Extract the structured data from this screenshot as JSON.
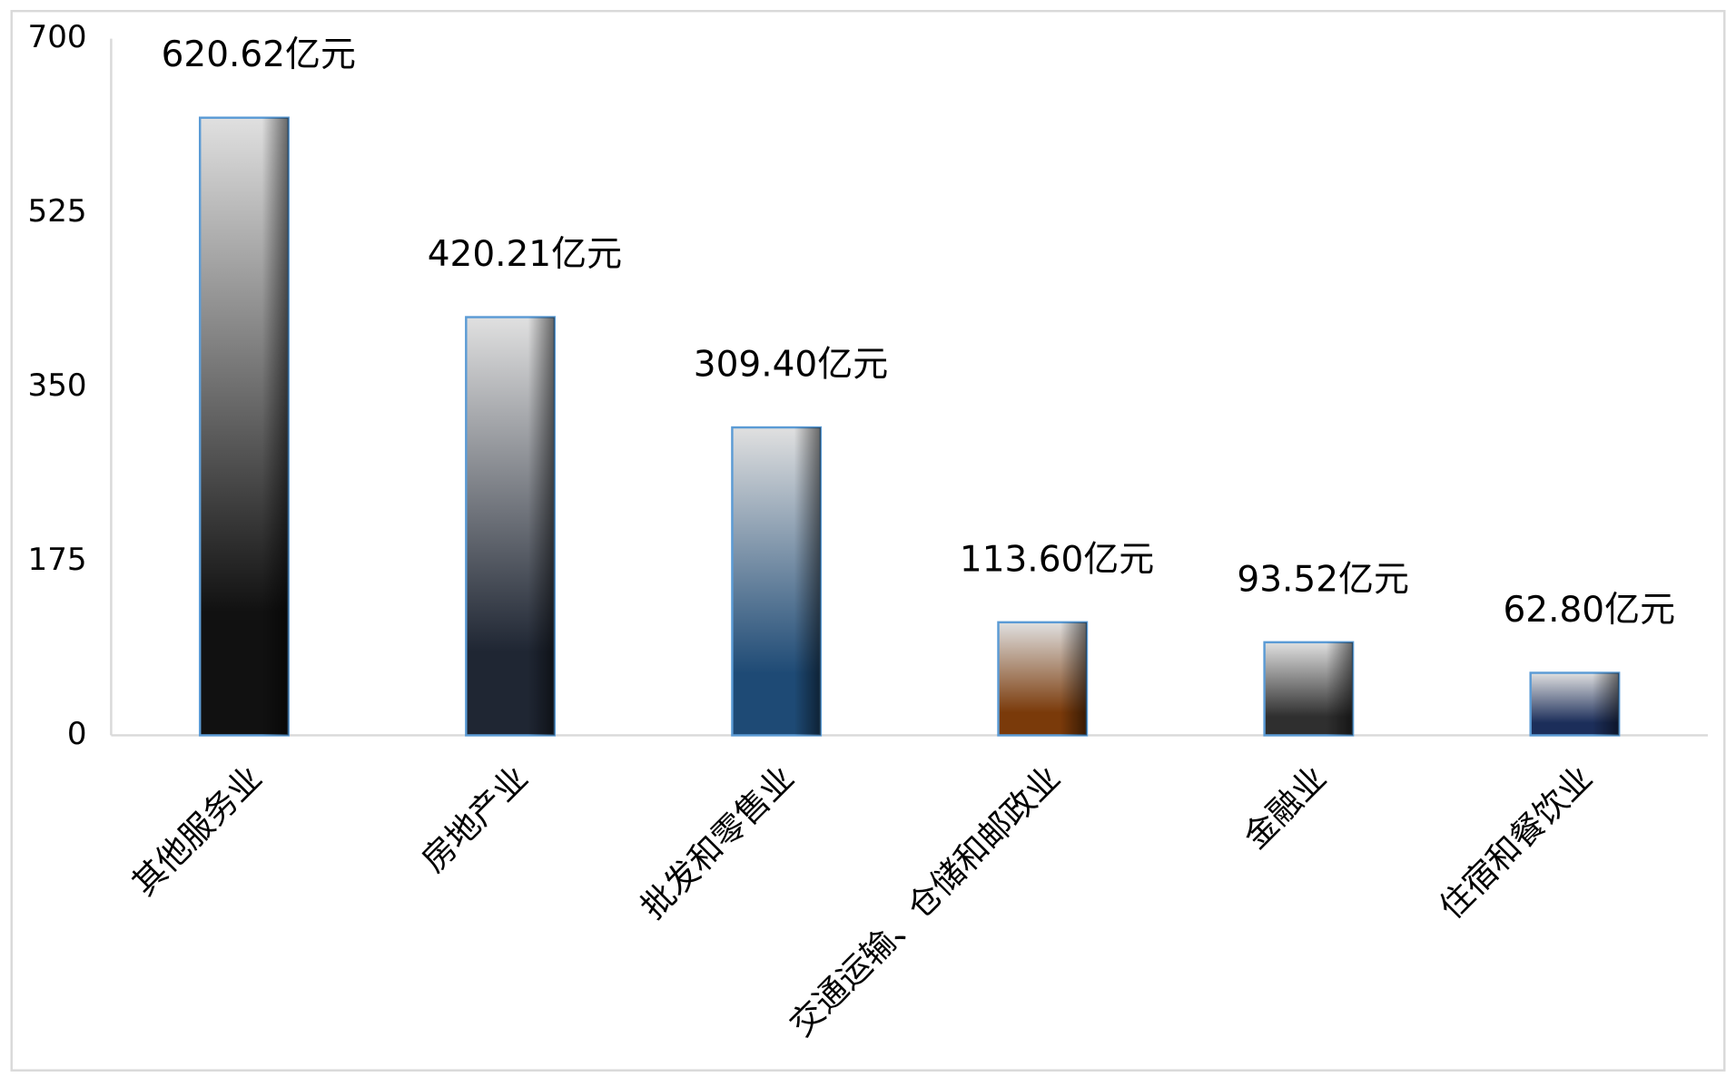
{
  "chart_data": {
    "type": "bar",
    "categories": [
      "其他服务业",
      "房地产业",
      "批发和零售业",
      "交通运输、仓储和邮政业",
      "金融业",
      "住宿和餐饮业"
    ],
    "values": [
      620.62,
      420.21,
      309.4,
      113.6,
      93.52,
      62.8
    ],
    "value_labels": [
      "620.62亿元",
      "420.21亿元",
      "309.40亿元",
      "113.60亿元",
      "93.52亿元",
      "62.80亿元"
    ],
    "colors": [
      "#111111",
      "#1f2633",
      "#1e4a75",
      "#7a3a0a",
      "#2f2f2f",
      "#1c2e5a"
    ],
    "ylim": [
      0,
      700
    ],
    "yticks": [
      0,
      175,
      350,
      525,
      700
    ],
    "grid": false
  }
}
